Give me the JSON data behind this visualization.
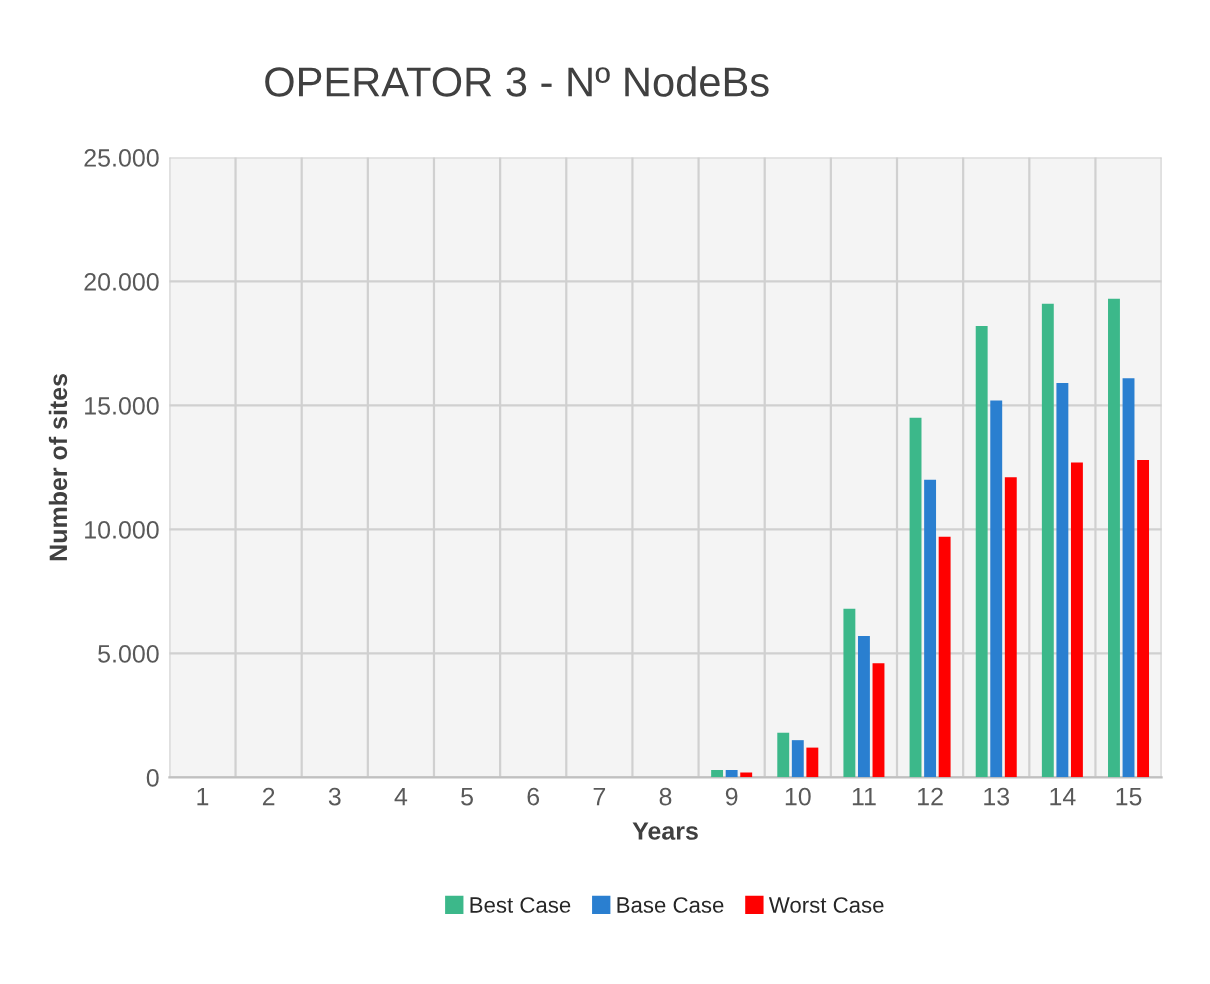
{
  "chart_data": {
    "type": "bar",
    "title": "OPERATOR 3 - Nº NodeBs",
    "xlabel": "Years",
    "ylabel": "Number of sites",
    "categories": [
      "1",
      "2",
      "3",
      "4",
      "5",
      "6",
      "7",
      "8",
      "9",
      "10",
      "11",
      "12",
      "13",
      "14",
      "15"
    ],
    "series": [
      {
        "name": "Best Case",
        "color": "#3cb88a",
        "values": [
          0,
          0,
          0,
          0,
          0,
          0,
          0,
          0,
          300,
          1800,
          6800,
          14500,
          18200,
          19100,
          19300
        ]
      },
      {
        "name": "Base Case",
        "color": "#2a7fd0",
        "values": [
          0,
          0,
          0,
          0,
          0,
          0,
          0,
          0,
          300,
          1500,
          5700,
          12000,
          15200,
          15900,
          16100
        ]
      },
      {
        "name": "Worst Case",
        "color": "#ff0000",
        "values": [
          0,
          0,
          0,
          0,
          0,
          0,
          0,
          0,
          200,
          1200,
          4600,
          9700,
          12100,
          12700,
          12800
        ]
      }
    ],
    "ylim": [
      0,
      25000
    ],
    "yticks": [
      {
        "value": 0,
        "label": "0"
      },
      {
        "value": 5000,
        "label": "5.000"
      },
      {
        "value": 10000,
        "label": "10.000"
      },
      {
        "value": 15000,
        "label": "15.000"
      },
      {
        "value": 20000,
        "label": "20.000"
      },
      {
        "value": 25000,
        "label": "25.000"
      }
    ],
    "grid": true,
    "legend": "bottom"
  }
}
